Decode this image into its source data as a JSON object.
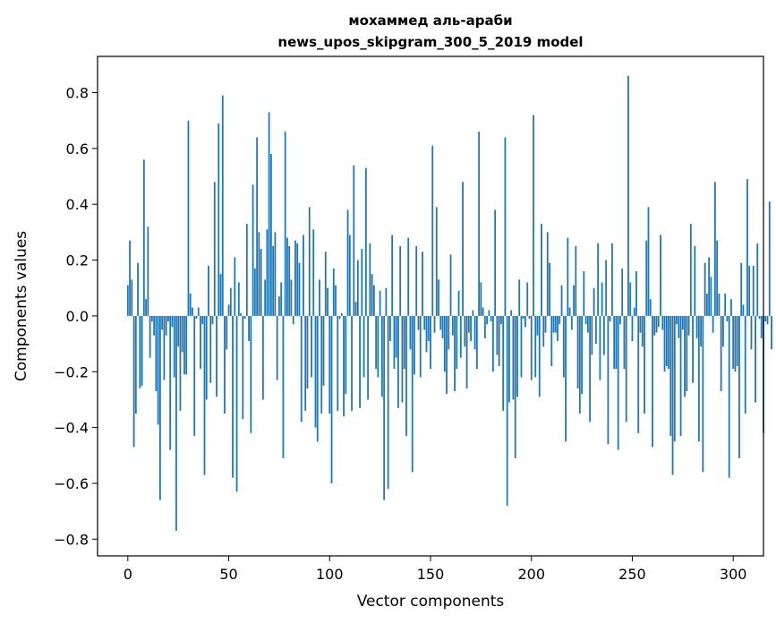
{
  "chart_data": {
    "type": "bar",
    "title": "мохаммед аль-араби",
    "subtitle": "news_upos_skipgram_300_5_2019 model",
    "xlabel": "Vector components",
    "ylabel": "Components values",
    "xlim": [
      -15,
      315
    ],
    "ylim": [
      -0.86,
      0.93
    ],
    "xticks": [
      0,
      50,
      100,
      150,
      200,
      250,
      300
    ],
    "xtick_labels": [
      "0",
      "50",
      "100",
      "150",
      "200",
      "250",
      "300"
    ],
    "yticks": [
      -0.8,
      -0.6,
      -0.4,
      -0.2,
      0.0,
      0.2,
      0.4,
      0.6,
      0.8
    ],
    "ytick_labels": [
      "−0.8",
      "−0.6",
      "−0.4",
      "−0.2",
      "0.0",
      "0.2",
      "0.4",
      "0.6",
      "0.8"
    ],
    "grid": false,
    "color": "#1f77b4",
    "values": [
      0.11,
      0.27,
      0.13,
      -0.47,
      -0.35,
      0.19,
      -0.26,
      -0.25,
      0.56,
      0.06,
      0.32,
      -0.15,
      -0.02,
      -0.07,
      -0.27,
      -0.39,
      -0.66,
      -0.05,
      -0.23,
      -0.07,
      -0.02,
      -0.48,
      -0.04,
      -0.22,
      -0.77,
      -0.11,
      -0.34,
      -0.13,
      -0.21,
      -0.21,
      0.7,
      0.08,
      0.03,
      -0.43,
      -0.01,
      0.03,
      -0.19,
      -0.03,
      -0.57,
      -0.3,
      0.18,
      -0.24,
      -0.03,
      0.48,
      -0.29,
      0.69,
      0.15,
      0.79,
      -0.35,
      -0.12,
      0.04,
      0.1,
      -0.58,
      0.21,
      -0.63,
      0.12,
      0.01,
      -0.37,
      -0.01,
      0.33,
      -0.09,
      -0.42,
      0.47,
      0.17,
      0.64,
      0.3,
      0.24,
      -0.3,
      0.13,
      0.31,
      0.73,
      0.58,
      0.25,
      0.3,
      -0.23,
      0.07,
      0.12,
      -0.51,
      0.66,
      0.28,
      0.25,
      0.13,
      -0.03,
      0.27,
      0.26,
      0.19,
      -0.38,
      0.29,
      -0.34,
      -0.26,
      0.39,
      -0.22,
      0.31,
      -0.4,
      -0.45,
      0.13,
      -0.35,
      -0.25,
      0.23,
      0.1,
      -0.35,
      -0.6,
      0.17,
      0.11,
      -0.34,
      -0.01,
      0.01,
      -0.36,
      -0.28,
      0.38,
      0.29,
      -0.34,
      0.54,
      0.05,
      0.2,
      -0.33,
      0.24,
      -0.22,
      0.53,
      -0.3,
      0.26,
      0.15,
      0.11,
      -0.19,
      -0.22,
      0.09,
      -0.29,
      -0.66,
      0.1,
      -0.62,
      -0.09,
      0.29,
      -0.19,
      -0.15,
      -0.33,
      0.25,
      -0.31,
      -0.19,
      -0.43,
      0.28,
      -0.12,
      -0.56,
      -0.21,
      0.25,
      -0.05,
      -0.22,
      0.23,
      -0.05,
      -0.13,
      -0.09,
      -0.19,
      0.61,
      -0.06,
      0.39,
      0.13,
      -0.05,
      -0.08,
      -0.2,
      -0.28,
      -0.12,
      0.22,
      -0.07,
      -0.27,
      -0.19,
      0.09,
      -0.15,
      0.48,
      -0.11,
      -0.26,
      -0.06,
      -0.09,
      0.02,
      -0.12,
      -0.19,
      0.66,
      0.12,
      0.03,
      -0.08,
      -0.03,
      0.02,
      -0.02,
      -0.2,
      0.38,
      -0.14,
      -0.18,
      -0.03,
      -0.34,
      0.64,
      -0.68,
      -0.31,
      0.02,
      -0.3,
      -0.51,
      -0.29,
      0.13,
      -0.22,
      -0.01,
      -0.04,
      0.12,
      -0.01,
      -0.23,
      0.72,
      -0.22,
      -0.07,
      -0.29,
      0.33,
      -0.11,
      -0.06,
      0.3,
      0.19,
      -0.18,
      -0.06,
      -0.06,
      -0.09,
      -0.03,
      0.11,
      -0.22,
      -0.45,
      0.28,
      0.03,
      -0.05,
      0.11,
      0.25,
      -0.26,
      -0.35,
      -0.28,
      0.16,
      -0.03,
      -0.06,
      -0.38,
      -0.14,
      0.1,
      -0.1,
      0.26,
      -0.23,
      0.12,
      -0.14,
      0.2,
      -0.46,
      -0.02,
      0.26,
      -0.19,
      -0.19,
      -0.48,
      -0.03,
      0.17,
      -0.19,
      -0.38,
      0.86,
      0.12,
      -0.09,
      0.03,
      0.16,
      -0.42,
      -0.06,
      -0.11,
      -0.35,
      0.27,
      0.39,
      0.06,
      -0.47,
      -0.07,
      -0.06,
      -0.04,
      0.29,
      -0.05,
      -0.2,
      -0.18,
      -0.19,
      -0.43,
      -0.57,
      -0.45,
      -0.03,
      -0.08,
      -0.43,
      -0.05,
      -0.29,
      -0.27,
      -0.07,
      0.33,
      -0.24,
      0.25,
      -0.08,
      -0.45,
      -0.11,
      -0.56,
      0.19,
      0.08,
      0.21,
      0.14,
      -0.06,
      0.48,
      0.27,
      0.08,
      -0.27,
      -0.11,
      0.08,
      -0.02,
      -0.58,
      0.06,
      -0.19,
      -0.2,
      -0.18,
      -0.51,
      0.19,
      0.04,
      -0.35,
      0.49,
      0.18,
      -0.12,
      0.18,
      -0.31,
      0.26,
      -0.01,
      -0.08,
      -0.42,
      -0.02,
      -0.03,
      0.41,
      -0.12
    ]
  }
}
